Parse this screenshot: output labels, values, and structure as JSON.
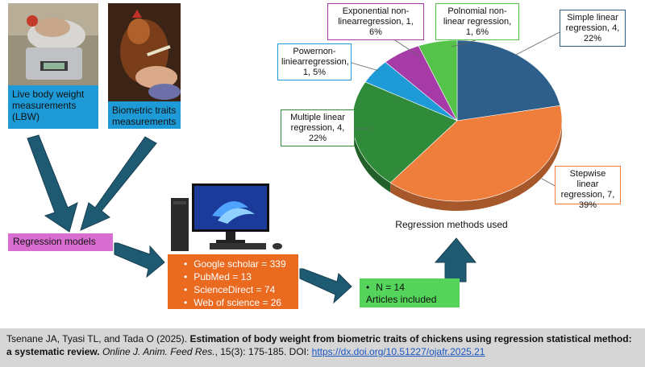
{
  "left": {
    "lbw_label": "Live body weight measurements (LBW)",
    "biometric_label": "Biometric traits measurements",
    "regression_models": "Regression models"
  },
  "databases": [
    "Google scholar = 339",
    "PubMed = 13",
    "ScienceDirect = 74",
    "Web of science = 26"
  ],
  "included": {
    "n": "N = 14",
    "label": "Articles included"
  },
  "chart_caption": "Regression methods used",
  "chart_data": {
    "type": "pie",
    "slices": [
      {
        "label": "Simple linear regression, 4, 22%",
        "value": 22,
        "color": "#2e5f8a"
      },
      {
        "label": "Stepwise linear regression, 7, 39%",
        "value": 39,
        "color": "#ef7d3c"
      },
      {
        "label": "Multiple linear regression, 4, 22%",
        "value": 22,
        "color": "#2f8a3a"
      },
      {
        "label": "Powernon-liniearregression, 1, 5%",
        "value": 5,
        "color": "#1e9bd7"
      },
      {
        "label": "Exponential non-linearregression, 1, 6%",
        "value": 6,
        "color": "#a63aa6"
      },
      {
        "label": "Polnomial non-linear regression, 1, 6%",
        "value": 6,
        "color": "#55c24a"
      }
    ]
  },
  "callouts": {
    "simple": "Simple linear regression, 4, 22%",
    "stepwise": "Stepwise linear regression, 7, 39%",
    "multiple": "Multiple linear regression, 4, 22%",
    "power": "Powernon-liniearregression, 1, 5%",
    "exponential": "Exponential non-linearregression, 1, 6%",
    "polynomial": "Polnomial non-linear regression, 1, 6%"
  },
  "colors": {
    "simple": "#2e5f8a",
    "stepwise": "#ef7d3c",
    "multiple": "#2f8a3a",
    "power": "#1e9bd7",
    "exponential": "#a63aa6",
    "polynomial": "#55c24a",
    "arrow": "#1f5a73"
  },
  "footer": {
    "authors": "Tsenane JA, Tyasi TL, and Tada O (2025). ",
    "title": "Estimation of body weight from biometric traits of chickens using regression statistical method: a systematic review.",
    "journal": " Online J. Anim. Feed Res.",
    "volume": ", 15(3): 175-185. DOI: ",
    "doi": "https://dx.doi.org/10.51227/ojafr.2025.21"
  }
}
